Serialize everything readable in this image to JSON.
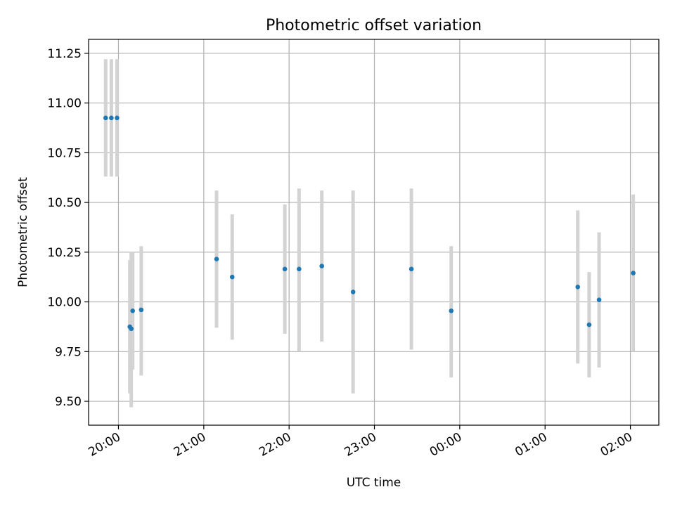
{
  "chart_data": {
    "type": "scatter",
    "title": "Photometric offset variation",
    "xlabel": "UTC time",
    "ylabel": "Photometric offset",
    "x_unit": "hours of UTC",
    "xlim": [
      "19:39",
      "02:20"
    ],
    "ylim": [
      9.38,
      11.32
    ],
    "x_ticks": [
      {
        "label": "20:00",
        "time": "20:00"
      },
      {
        "label": "21:00",
        "time": "21:00"
      },
      {
        "label": "22:00",
        "time": "22:00"
      },
      {
        "label": "23:00",
        "time": "23:00"
      },
      {
        "label": "00:00",
        "time": "00:00"
      },
      {
        "label": "01:00",
        "time": "01:00"
      },
      {
        "label": "02:00",
        "time": "02:00"
      }
    ],
    "y_ticks": [
      {
        "label": "9.50",
        "value": 9.5
      },
      {
        "label": "9.75",
        "value": 9.75
      },
      {
        "label": "10.00",
        "value": 10.0
      },
      {
        "label": "10.25",
        "value": 10.25
      },
      {
        "label": "10.50",
        "value": 10.5
      },
      {
        "label": "10.75",
        "value": 10.75
      },
      {
        "label": "11.00",
        "value": 11.0
      },
      {
        "label": "11.25",
        "value": 11.25
      }
    ],
    "grid": true,
    "marker_color": "#1f77b4",
    "errorbar_color": "#d3d3d3",
    "points": [
      {
        "time": "19:51",
        "y": 10.925,
        "yerr_low": 10.63,
        "yerr_high": 11.22
      },
      {
        "time": "19:55",
        "y": 10.925,
        "yerr_low": 10.63,
        "yerr_high": 11.22
      },
      {
        "time": "19:59",
        "y": 10.925,
        "yerr_low": 10.63,
        "yerr_high": 11.22
      },
      {
        "time": "20:08",
        "y": 9.875,
        "yerr_low": 9.54,
        "yerr_high": 10.21
      },
      {
        "time": "20:09",
        "y": 9.865,
        "yerr_low": 9.47,
        "yerr_high": 10.25
      },
      {
        "time": "20:10",
        "y": 9.955,
        "yerr_low": 9.66,
        "yerr_high": 10.25
      },
      {
        "time": "20:16",
        "y": 9.96,
        "yerr_low": 9.63,
        "yerr_high": 10.28
      },
      {
        "time": "21:09",
        "y": 10.215,
        "yerr_low": 9.87,
        "yerr_high": 10.56
      },
      {
        "time": "21:20",
        "y": 10.125,
        "yerr_low": 9.81,
        "yerr_high": 10.44
      },
      {
        "time": "21:57",
        "y": 10.165,
        "yerr_low": 9.84,
        "yerr_high": 10.49
      },
      {
        "time": "22:07",
        "y": 10.165,
        "yerr_low": 9.75,
        "yerr_high": 10.57
      },
      {
        "time": "22:23",
        "y": 10.18,
        "yerr_low": 9.8,
        "yerr_high": 10.56
      },
      {
        "time": "22:45",
        "y": 10.05,
        "yerr_low": 9.54,
        "yerr_high": 10.56
      },
      {
        "time": "23:26",
        "y": 10.165,
        "yerr_low": 9.76,
        "yerr_high": 10.57
      },
      {
        "time": "23:54",
        "y": 9.955,
        "yerr_low": 9.62,
        "yerr_high": 10.28
      },
      {
        "time": "01:23",
        "y": 10.075,
        "yerr_low": 9.69,
        "yerr_high": 10.46
      },
      {
        "time": "01:31",
        "y": 9.885,
        "yerr_low": 9.62,
        "yerr_high": 10.15
      },
      {
        "time": "01:38",
        "y": 10.01,
        "yerr_low": 9.67,
        "yerr_high": 10.35
      },
      {
        "time": "02:02",
        "y": 10.145,
        "yerr_low": 9.75,
        "yerr_high": 10.54
      }
    ]
  }
}
